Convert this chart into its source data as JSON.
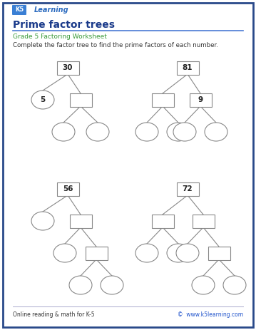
{
  "title": "Prime factor trees",
  "subtitle": "Grade 5 Factoring Worksheet",
  "instruction": "Complete the factor tree to find the prime factors of each number.",
  "footer_left": "Online reading & math for K-5",
  "footer_right": "©  www.k5learning.com",
  "border_color": "#2a4a8a",
  "bg_color": "#ffffff",
  "title_color": "#1a3a8a",
  "subtitle_color": "#3a9a3a",
  "text_color": "#333333",
  "footer_link_color": "#2255cc",
  "line_color": "#888888",
  "shape_edge_color": "#888888",
  "header_line_color": "#4a7ad4",
  "footer_line_color": "#aaaacc"
}
